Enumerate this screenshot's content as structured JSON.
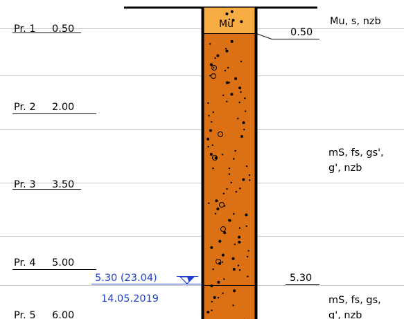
{
  "samples": [
    {
      "label": "Pr. 1",
      "depth": "0.50"
    },
    {
      "label": "Pr. 2",
      "depth": "2.00"
    },
    {
      "label": "Pr. 3",
      "depth": "3.50"
    },
    {
      "label": "Pr. 4",
      "depth": "5.00"
    },
    {
      "label": "Pr. 5",
      "depth": "6.00"
    }
  ],
  "layers": [
    {
      "code": "Mu",
      "bottom_depth": "0.50",
      "description_lines": [
        "Mu, s, nzb"
      ],
      "fill_color": "#f7ad43"
    },
    {
      "code": "",
      "bottom_depth": "5.30",
      "description_lines": [
        "mS, fs, gs',",
        "g', nzb"
      ],
      "fill_color": "#db7014"
    },
    {
      "code": "",
      "bottom_depth": "",
      "description_lines": [
        "mS, fs, gs,",
        "g', nzb"
      ],
      "fill_color": "#db7014"
    }
  ],
  "groundwater": {
    "level_text": "5.30 (23.04)",
    "date": "14.05.2019",
    "color": "#1f3fd1",
    "icon": "water-level-triangle-icon"
  }
}
